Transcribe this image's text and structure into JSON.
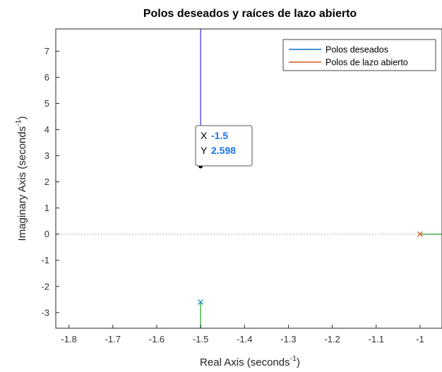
{
  "chart_data": {
    "type": "line",
    "title": "Polos deseados y raíces de lazo abierto",
    "xlabel": "Real Axis (seconds",
    "ylabel": "Imaginary Axis (seconds",
    "label_exponent": "-1",
    "label_close": ")",
    "xlim": [
      -1.83,
      -0.95
    ],
    "ylim": [
      -3.6,
      7.85
    ],
    "xticks": [
      "-1.8",
      "-1.7",
      "-1.6",
      "-1.5",
      "-1.4",
      "-1.3",
      "-1.2",
      "-1.1",
      "-1"
    ],
    "yticks": [
      "-3",
      "-2",
      "-1",
      "0",
      "1",
      "2",
      "3",
      "4",
      "5",
      "6",
      "7"
    ],
    "grid": false,
    "legend_position": "top-right",
    "series": [
      {
        "name": "Polos deseados",
        "color": "#0072BD"
      },
      {
        "name": "Polos de lazo abierto",
        "color": "#D95319"
      }
    ],
    "zero_line": {
      "y": 0,
      "style": "dotted"
    },
    "desired_pole_line": {
      "x": -1.5,
      "y_from": 2.598,
      "y_to": 7.85,
      "color": "#5a5ae0"
    },
    "desired_pole_lower_line": {
      "x": -1.5,
      "y_from": -2.598,
      "y_to": -3.6,
      "color": "#45b048"
    },
    "desired_pole_markers": [
      {
        "x": -1.5,
        "y": -2.598,
        "marker": "x",
        "color": "#2a8fc4"
      }
    ],
    "open_loop_pole_markers": [
      {
        "x": -1.0,
        "y": 0,
        "marker": "x",
        "color": "#D95319"
      }
    ],
    "open_loop_branch": {
      "x_from": -1.0,
      "x_to": -0.95,
      "y": 0,
      "color": "#45b048"
    },
    "datatip": {
      "x_label": "X",
      "x_value": "-1.5",
      "y_label": "Y",
      "y_value": "2.598",
      "point_x": -1.5,
      "point_y": 2.598
    }
  }
}
